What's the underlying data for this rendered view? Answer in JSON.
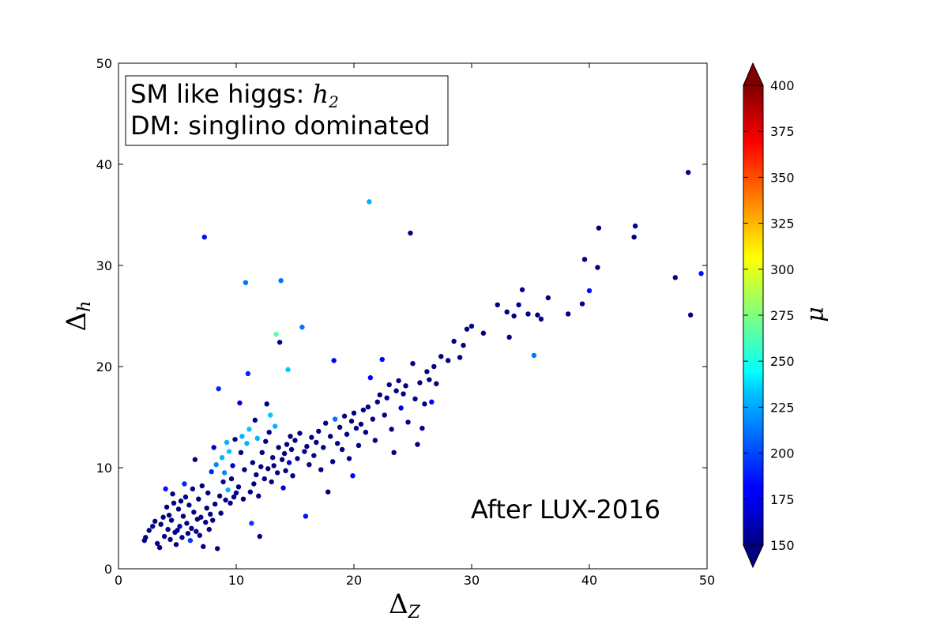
{
  "chart_data": {
    "type": "scatter",
    "xlabel": "Δ",
    "xlabel_sub": "Z",
    "ylabel": "Δ",
    "ylabel_sub": "h",
    "xlim": [
      0,
      50
    ],
    "ylim": [
      0,
      50
    ],
    "xticks": [
      "0",
      "10",
      "20",
      "30",
      "40",
      "50"
    ],
    "yticks": [
      "0",
      "10",
      "20",
      "30",
      "40",
      "50"
    ],
    "grid": false,
    "legend_box": {
      "line1_text": "SM like higgs: ",
      "line1_math": "h",
      "line1_math_sub": "2",
      "line2_text": "DM: singlino dominated",
      "placement": "top-left"
    },
    "annotation": "After LUX-2016",
    "colorbar": {
      "label": "μ",
      "min": 150,
      "max": 400,
      "ticks": [
        "150",
        "175",
        "200",
        "225",
        "250",
        "275",
        "300",
        "325",
        "350",
        "375",
        "400"
      ],
      "colormap": "jet",
      "extend": "both"
    },
    "points": [
      [
        2.2,
        2.8,
        150
      ],
      [
        2.3,
        3.1,
        150
      ],
      [
        2.6,
        3.8,
        150
      ],
      [
        2.9,
        4.2,
        150
      ],
      [
        3.1,
        4.7,
        150
      ],
      [
        3.3,
        2.5,
        150
      ],
      [
        3.5,
        2.1,
        150
      ],
      [
        3.6,
        4.4,
        150
      ],
      [
        3.8,
        5.1,
        150
      ],
      [
        3.9,
        3.2,
        150
      ],
      [
        4.0,
        7.9,
        185
      ],
      [
        4.1,
        6.1,
        150
      ],
      [
        4.2,
        3.9,
        150
      ],
      [
        4.3,
        5.3,
        150
      ],
      [
        4.4,
        2.9,
        150
      ],
      [
        4.5,
        4.8,
        150
      ],
      [
        4.6,
        7.4,
        150
      ],
      [
        4.7,
        6.5,
        150
      ],
      [
        4.8,
        3.6,
        150
      ],
      [
        4.9,
        2.4,
        150
      ],
      [
        5.0,
        3.8,
        150
      ],
      [
        5.1,
        5.9,
        150
      ],
      [
        5.2,
        4.2,
        165
      ],
      [
        5.3,
        6.7,
        150
      ],
      [
        5.4,
        3.1,
        150
      ],
      [
        5.5,
        5.2,
        150
      ],
      [
        5.6,
        8.4,
        190
      ],
      [
        5.7,
        7.1,
        150
      ],
      [
        5.8,
        4.5,
        150
      ],
      [
        5.9,
        3.5,
        150
      ],
      [
        6.0,
        6.3,
        150
      ],
      [
        6.1,
        2.8,
        195
      ],
      [
        6.2,
        4.0,
        150
      ],
      [
        6.3,
        7.9,
        150
      ],
      [
        6.4,
        5.6,
        150
      ],
      [
        6.5,
        10.8,
        150
      ],
      [
        6.6,
        3.7,
        150
      ],
      [
        6.7,
        4.9,
        150
      ],
      [
        6.8,
        6.9,
        150
      ],
      [
        6.9,
        3.3,
        150
      ],
      [
        7.0,
        5.1,
        150
      ],
      [
        7.1,
        8.2,
        150
      ],
      [
        7.2,
        2.2,
        150
      ],
      [
        7.3,
        32.8,
        185
      ],
      [
        7.4,
        4.6,
        150
      ],
      [
        7.5,
        6.0,
        150
      ],
      [
        7.6,
        7.5,
        150
      ],
      [
        7.7,
        3.9,
        150
      ],
      [
        7.8,
        5.4,
        150
      ],
      [
        7.9,
        9.6,
        190
      ],
      [
        8.0,
        4.8,
        150
      ],
      [
        8.1,
        12.0,
        165
      ],
      [
        8.2,
        6.4,
        150
      ],
      [
        8.3,
        10.3,
        215
      ],
      [
        8.4,
        2.0,
        150
      ],
      [
        8.5,
        17.8,
        190
      ],
      [
        8.6,
        7.2,
        150
      ],
      [
        8.7,
        5.5,
        150
      ],
      [
        8.8,
        11.0,
        225
      ],
      [
        8.9,
        8.6,
        150
      ],
      [
        9.0,
        9.5,
        215
      ],
      [
        9.1,
        6.8,
        150
      ],
      [
        9.2,
        12.5,
        225
      ],
      [
        9.3,
        7.8,
        225
      ],
      [
        9.4,
        11.6,
        230
      ],
      [
        9.5,
        6.5,
        150
      ],
      [
        9.6,
        8.9,
        150
      ],
      [
        9.7,
        10.2,
        165
      ],
      [
        9.8,
        7.1,
        150
      ],
      [
        9.9,
        12.8,
        150
      ],
      [
        10.0,
        7.5,
        150
      ],
      [
        10.2,
        8.1,
        150
      ],
      [
        10.3,
        16.4,
        170
      ],
      [
        10.4,
        11.5,
        150
      ],
      [
        10.5,
        13.1,
        225
      ],
      [
        10.6,
        6.9,
        150
      ],
      [
        10.7,
        9.8,
        150
      ],
      [
        10.8,
        28.3,
        210
      ],
      [
        10.9,
        12.4,
        225
      ],
      [
        11.0,
        19.3,
        190
      ],
      [
        11.1,
        13.8,
        230
      ],
      [
        11.2,
        7.6,
        150
      ],
      [
        11.3,
        4.5,
        195
      ],
      [
        11.4,
        10.5,
        150
      ],
      [
        11.5,
        8.4,
        150
      ],
      [
        11.6,
        14.7,
        150
      ],
      [
        11.7,
        9.3,
        150
      ],
      [
        11.8,
        12.9,
        225
      ],
      [
        11.9,
        7.2,
        150
      ],
      [
        12.0,
        3.2,
        150
      ],
      [
        12.1,
        10.1,
        150
      ],
      [
        12.2,
        11.5,
        150
      ],
      [
        12.4,
        8.9,
        150
      ],
      [
        12.5,
        12.6,
        150
      ],
      [
        12.6,
        16.3,
        150
      ],
      [
        12.7,
        9.9,
        150
      ],
      [
        12.8,
        13.5,
        150
      ],
      [
        12.9,
        15.2,
        230
      ],
      [
        13.0,
        8.6,
        150
      ],
      [
        13.1,
        11.0,
        150
      ],
      [
        13.2,
        10.2,
        150
      ],
      [
        13.3,
        14.1,
        225
      ],
      [
        13.4,
        23.2,
        265
      ],
      [
        13.5,
        9.5,
        150
      ],
      [
        13.6,
        12.0,
        150
      ],
      [
        13.7,
        22.4,
        150
      ],
      [
        13.8,
        28.5,
        210
      ],
      [
        13.9,
        10.8,
        150
      ],
      [
        14.0,
        8.0,
        170
      ],
      [
        14.1,
        11.4,
        150
      ],
      [
        14.2,
        9.7,
        150
      ],
      [
        14.3,
        12.3,
        150
      ],
      [
        14.4,
        19.7,
        230
      ],
      [
        14.5,
        10.5,
        170
      ],
      [
        14.6,
        13.1,
        150
      ],
      [
        14.7,
        11.8,
        150
      ],
      [
        14.8,
        9.2,
        150
      ],
      [
        15.0,
        12.7,
        150
      ],
      [
        15.2,
        10.9,
        150
      ],
      [
        15.4,
        13.4,
        150
      ],
      [
        15.6,
        23.9,
        210
      ],
      [
        15.8,
        11.6,
        150
      ],
      [
        15.9,
        5.2,
        185
      ],
      [
        16.0,
        12.1,
        150
      ],
      [
        16.2,
        10.3,
        150
      ],
      [
        16.4,
        13.0,
        150
      ],
      [
        16.6,
        11.2,
        150
      ],
      [
        16.8,
        12.5,
        150
      ],
      [
        17.0,
        13.6,
        150
      ],
      [
        17.2,
        9.8,
        150
      ],
      [
        17.4,
        12.0,
        150
      ],
      [
        17.6,
        14.4,
        150
      ],
      [
        17.8,
        7.6,
        150
      ],
      [
        18.0,
        13.1,
        150
      ],
      [
        18.2,
        10.6,
        150
      ],
      [
        18.3,
        20.6,
        180
      ],
      [
        18.4,
        14.8,
        210
      ],
      [
        18.6,
        12.4,
        150
      ],
      [
        18.8,
        14.0,
        150
      ],
      [
        19.0,
        11.8,
        150
      ],
      [
        19.2,
        15.1,
        150
      ],
      [
        19.4,
        13.3,
        150
      ],
      [
        19.6,
        10.9,
        150
      ],
      [
        19.8,
        14.6,
        150
      ],
      [
        19.9,
        9.2,
        180
      ],
      [
        20.0,
        15.4,
        150
      ],
      [
        20.2,
        13.9,
        150
      ],
      [
        20.4,
        12.2,
        150
      ],
      [
        20.6,
        14.3,
        150
      ],
      [
        20.8,
        15.7,
        150
      ],
      [
        21.0,
        13.5,
        150
      ],
      [
        21.2,
        16.0,
        150
      ],
      [
        21.3,
        36.3,
        225
      ],
      [
        21.4,
        18.9,
        180
      ],
      [
        21.6,
        14.8,
        150
      ],
      [
        21.8,
        12.7,
        150
      ],
      [
        22.0,
        16.5,
        150
      ],
      [
        22.2,
        17.2,
        150
      ],
      [
        22.4,
        20.7,
        180
      ],
      [
        22.6,
        15.2,
        150
      ],
      [
        22.8,
        16.9,
        150
      ],
      [
        23.0,
        18.2,
        150
      ],
      [
        23.2,
        13.8,
        150
      ],
      [
        23.4,
        11.5,
        150
      ],
      [
        23.6,
        17.6,
        150
      ],
      [
        23.8,
        18.6,
        150
      ],
      [
        24.0,
        15.9,
        170
      ],
      [
        24.2,
        17.3,
        150
      ],
      [
        24.4,
        18.1,
        150
      ],
      [
        24.6,
        14.5,
        150
      ],
      [
        24.8,
        33.2,
        150
      ],
      [
        25.0,
        20.3,
        150
      ],
      [
        25.2,
        16.8,
        150
      ],
      [
        25.4,
        12.3,
        150
      ],
      [
        25.6,
        18.4,
        150
      ],
      [
        25.8,
        13.9,
        150
      ],
      [
        26.0,
        16.3,
        150
      ],
      [
        26.2,
        19.5,
        150
      ],
      [
        26.4,
        18.7,
        150
      ],
      [
        26.6,
        16.5,
        180
      ],
      [
        26.8,
        20.0,
        150
      ],
      [
        27.0,
        18.3,
        150
      ],
      [
        27.4,
        21.0,
        150
      ],
      [
        28.0,
        20.6,
        150
      ],
      [
        28.5,
        22.5,
        150
      ],
      [
        29.0,
        20.9,
        150
      ],
      [
        29.3,
        22.1,
        150
      ],
      [
        29.6,
        23.7,
        150
      ],
      [
        30.0,
        24.0,
        150
      ],
      [
        31.0,
        23.3,
        150
      ],
      [
        32.2,
        26.1,
        150
      ],
      [
        33.0,
        25.4,
        150
      ],
      [
        33.2,
        22.9,
        150
      ],
      [
        33.6,
        25.0,
        150
      ],
      [
        34.0,
        26.1,
        150
      ],
      [
        34.3,
        27.6,
        150
      ],
      [
        34.8,
        25.2,
        150
      ],
      [
        35.3,
        21.1,
        210
      ],
      [
        35.6,
        25.1,
        150
      ],
      [
        35.9,
        24.7,
        150
      ],
      [
        36.5,
        26.8,
        150
      ],
      [
        38.2,
        25.2,
        150
      ],
      [
        39.4,
        26.2,
        150
      ],
      [
        39.6,
        30.6,
        150
      ],
      [
        40.0,
        27.5,
        185
      ],
      [
        40.7,
        29.8,
        150
      ],
      [
        40.8,
        33.7,
        150
      ],
      [
        43.8,
        32.8,
        150
      ],
      [
        43.9,
        33.9,
        150
      ],
      [
        47.3,
        28.8,
        150
      ],
      [
        48.4,
        39.2,
        150
      ],
      [
        48.6,
        25.1,
        150
      ],
      [
        49.5,
        29.2,
        185
      ]
    ]
  }
}
